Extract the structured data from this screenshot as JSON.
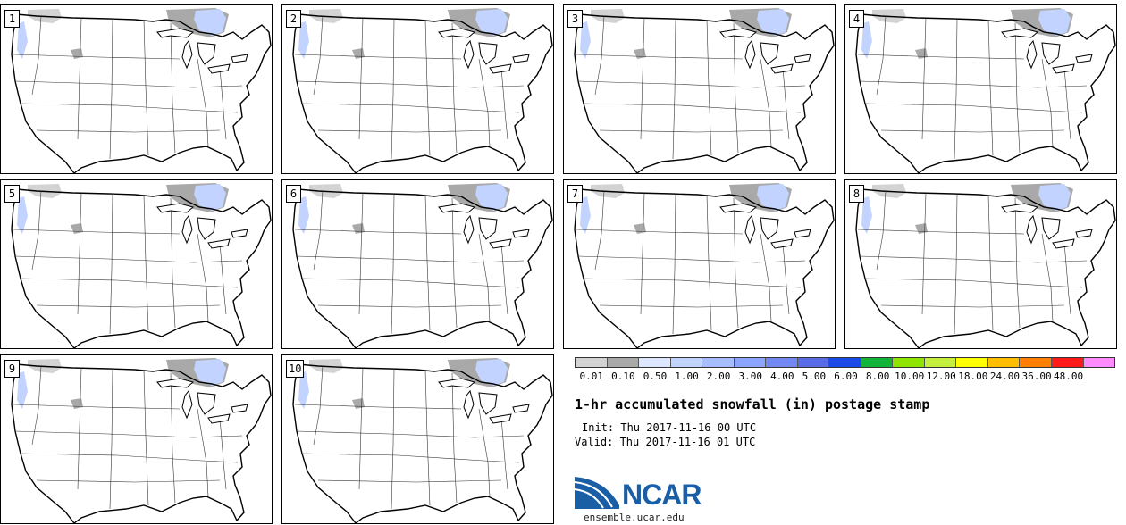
{
  "panels": [
    {
      "label": "1"
    },
    {
      "label": "2"
    },
    {
      "label": "3"
    },
    {
      "label": "4"
    },
    {
      "label": "5"
    },
    {
      "label": "6"
    },
    {
      "label": "7"
    },
    {
      "label": "8"
    },
    {
      "label": "9"
    },
    {
      "label": "10"
    }
  ],
  "colorbar": {
    "colors": [
      "#d3d3d3",
      "#a9a9a9",
      "#dce6ff",
      "#c2d3ff",
      "#a7bdff",
      "#8ca5ff",
      "#7388f0",
      "#5a6be6",
      "#1a4be8",
      "#12b53a",
      "#8ee600",
      "#c4ef3c",
      "#ffff00",
      "#ffbf00",
      "#ff8000",
      "#ff1a1a",
      "#ff8cff"
    ],
    "labels": [
      "0.01",
      "0.10",
      "0.50",
      "1.00",
      "2.00",
      "3.00",
      "4.00",
      "5.00",
      "6.00",
      "8.00",
      "10.00",
      "12.00",
      "18.00",
      "24.00",
      "36.00",
      "48.00"
    ]
  },
  "title": "1-hr accumulated snowfall (in) postage stamp",
  "init": "Init: Thu 2017-11-16 00 UTC",
  "valid": "Valid: Thu 2017-11-16 01 UTC",
  "logo": {
    "name": "NCAR",
    "site": "ensemble.ucar.edu"
  },
  "colors": {
    "logo_blue": "#1a5fa6",
    "snow_gray": "#a9a9a9",
    "snow_blue": "#c2d3ff"
  }
}
